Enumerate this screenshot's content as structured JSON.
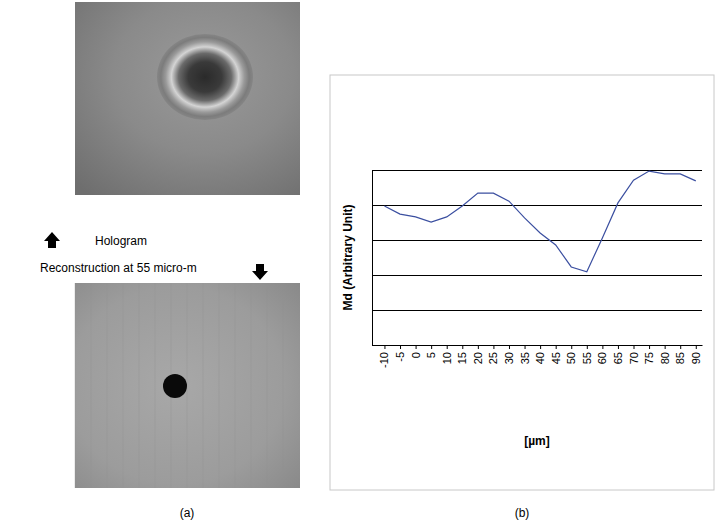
{
  "panels": {
    "a": {
      "caption": "(a)",
      "top_label": "Hologram",
      "bottom_label": "Reconstruction at 55 micro-m"
    },
    "b": {
      "caption": "(b)"
    }
  },
  "chart_data": {
    "type": "line",
    "x_label": "[µm]",
    "y_label": "Md (Arbitrary Unit)",
    "x": [
      -10,
      -5,
      0,
      5,
      10,
      15,
      20,
      25,
      30,
      35,
      40,
      45,
      50,
      55,
      60,
      65,
      70,
      75,
      80,
      85,
      90
    ],
    "values": [
      3.97,
      3.74,
      3.66,
      3.51,
      3.66,
      3.97,
      4.34,
      4.34,
      4.11,
      3.63,
      3.2,
      2.86,
      2.23,
      2.09,
      3.06,
      4.06,
      4.71,
      4.97,
      4.89,
      4.89,
      4.69
    ],
    "color": "#3b4fa0",
    "xlim": [
      -14,
      92
    ],
    "xticks": [
      -10,
      -5,
      0,
      5,
      10,
      15,
      20,
      25,
      30,
      35,
      40,
      45,
      50,
      55,
      60,
      65,
      70,
      75,
      80,
      85,
      90
    ],
    "ylim": [
      0,
      5
    ],
    "yticks": [
      0,
      1,
      2,
      3,
      4,
      5
    ],
    "grid": true,
    "tick_labels": "x"
  }
}
